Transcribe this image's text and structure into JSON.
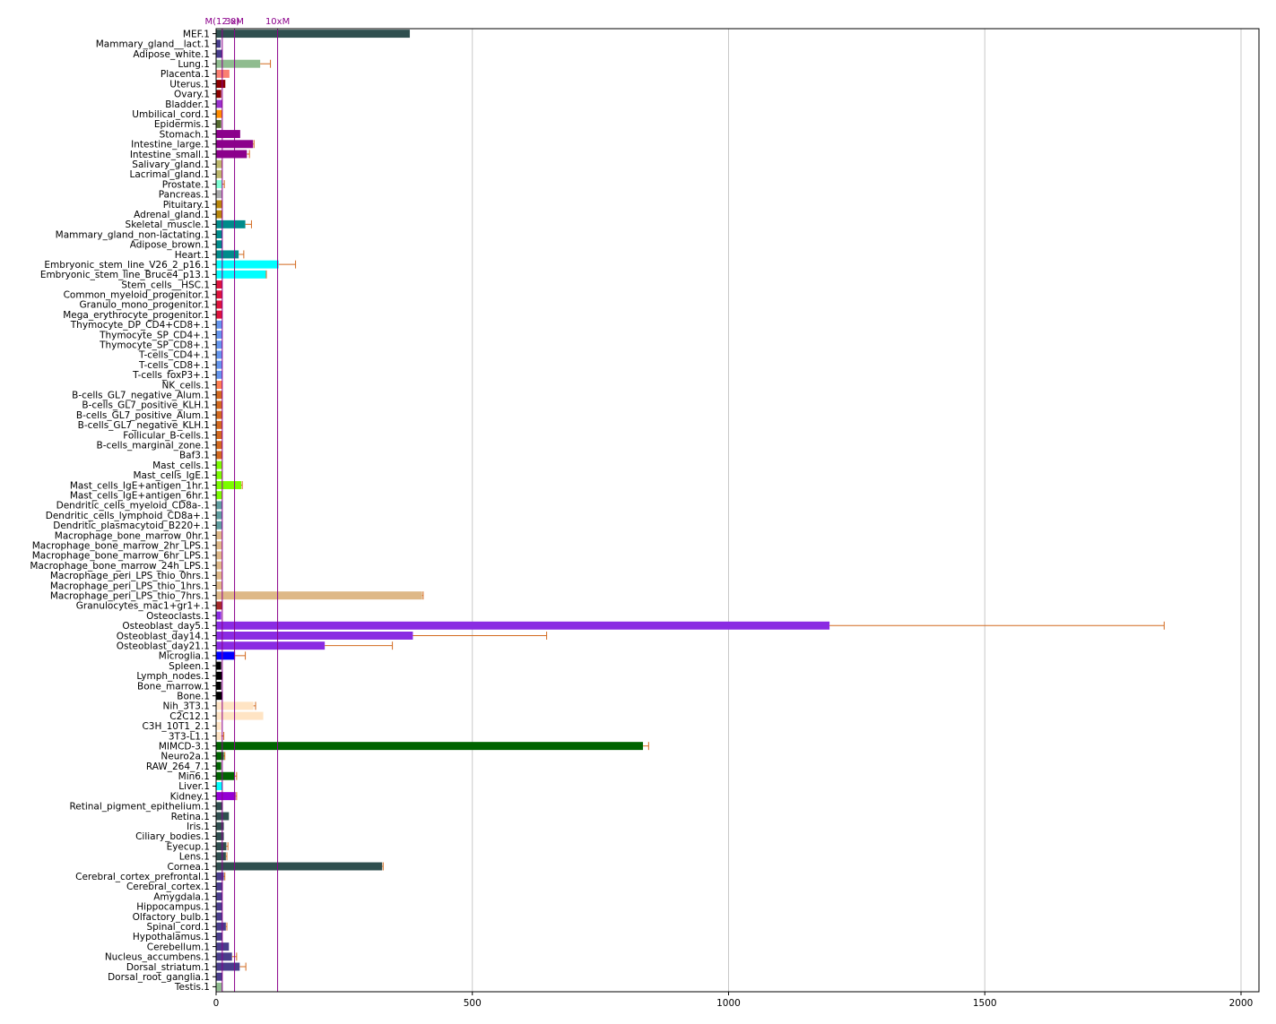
{
  "chart_data": {
    "type": "bar",
    "orientation": "horizontal",
    "title": "",
    "xlabel": "",
    "ylabel": "",
    "xlim": [
      0,
      2035
    ],
    "xticks": [
      0,
      500,
      1000,
      1500,
      2000
    ],
    "grid": "vertical",
    "error_bar_color": "#d2691e",
    "reference_lines": [
      {
        "label": "M(12.0)",
        "value": 12,
        "color": "#8b008b"
      },
      {
        "label": "3xM",
        "value": 36,
        "color": "#8b008b"
      },
      {
        "label": "10xM",
        "value": 120,
        "color": "#8b008b"
      }
    ],
    "categories": [
      "MEF.1",
      "Mammary_gland__lact.1",
      "Adipose_white.1",
      "Lung.1",
      "Placenta.1",
      "Uterus.1",
      "Ovary.1",
      "Bladder.1",
      "Umbilical_cord.1",
      "Epidermis.1",
      "Stomach.1",
      "Intestine_large.1",
      "Intestine_small.1",
      "Salivary_gland.1",
      "Lacrimal_gland.1",
      "Prostate.1",
      "Pancreas.1",
      "Pituitary.1",
      "Adrenal_gland.1",
      "Skeletal_muscle.1",
      "Mammary_gland_non-lactating.1",
      "Adipose_brown.1",
      "Heart.1",
      "Embryonic_stem_line_V26_2_p16.1",
      "Embryonic_stem_line_Bruce4_p13.1",
      "Stem_cells__HSC.1",
      "Common_myeloid_progenitor.1",
      "Granulo_mono_progenitor.1",
      "Mega_erythrocyte_progenitor.1",
      "Thymocyte_DP_CD4+CD8+.1",
      "Thymocyte_SP_CD4+.1",
      "Thymocyte_SP_CD8+.1",
      "T-cells_CD4+.1",
      "T-cells_CD8+.1",
      "T-cells_foxP3+.1",
      "NK_cells.1",
      "B-cells_GL7_negative_Alum.1",
      "B-cells_GL7_positive_KLH.1",
      "B-cells_GL7_positive_Alum.1",
      "B-cells_GL7_negative_KLH.1",
      "Follicular_B-cells.1",
      "B-cells_marginal_zone.1",
      "Baf3.1",
      "Mast_cells.1",
      "Mast_cells_IgE.1",
      "Mast_cells_IgE+antigen_1hr.1",
      "Mast_cells_IgE+antigen_6hr.1",
      "Dendritic_cells_myeloid_CD8a-.1",
      "Dendritic_cells_lymphoid_CD8a+.1",
      "Dendritic_plasmacytoid_B220+.1",
      "Macrophage_bone_marrow_0hr.1",
      "Macrophage_bone_marrow_2hr_LPS.1",
      "Macrophage_bone_marrow_6hr_LPS.1",
      "Macrophage_bone_marrow_24h_LPS.1",
      "Macrophage_peri_LPS_thio_0hrs.1",
      "Macrophage_peri_LPS_thio_1hrs.1",
      "Macrophage_peri_LPS_thio_7hrs.1",
      "Granulocytes_mac1+gr1+.1",
      "Osteoclasts.1",
      "Osteoblast_day5.1",
      "Osteoblast_day14.1",
      "Osteoblast_day21.1",
      "Microglia.1",
      "Spleen.1",
      "Lymph_nodes.1",
      "Bone_marrow.1",
      "Bone.1",
      "Nih_3T3.1",
      "C2C12.1",
      "C3H_10T1_2.1",
      "3T3-L1.1",
      "MIMCD-3.1",
      "Neuro2a.1",
      "RAW_264_7.1",
      "Min6.1",
      "Liver.1",
      "Kidney.1",
      "Retinal_pigment_epithelium.1",
      "Retina.1",
      "Iris.1",
      "Ciliary_bodies.1",
      "Eyecup.1",
      "Lens.1",
      "Cornea.1",
      "Cerebral_cortex_prefrontal.1",
      "Cerebral_cortex.1",
      "Amygdala.1",
      "Hippocampus.1",
      "Olfactory_bulb.1",
      "Spinal_cord.1",
      "Hypothalamus.1",
      "Cerebellum.1",
      "Nucleus_accumbens.1",
      "Dorsal_striatum.1",
      "Dorsal_root_ganglia.1",
      "Testis.1"
    ],
    "values": [
      378,
      9,
      12,
      86,
      26,
      18,
      10,
      12,
      12,
      10,
      47,
      72,
      60,
      12,
      12,
      12,
      12,
      12,
      12,
      57,
      12,
      12,
      44,
      122,
      97,
      12,
      12,
      12,
      12,
      12,
      12,
      12,
      12,
      12,
      12,
      12,
      12,
      12,
      12,
      12,
      12,
      12,
      12,
      12,
      12,
      49,
      12,
      12,
      12,
      12,
      12,
      12,
      12,
      12,
      12,
      12,
      402,
      12,
      10,
      1197,
      384,
      212,
      37,
      10,
      12,
      10,
      12,
      73,
      92,
      10,
      10,
      833,
      15,
      10,
      36,
      12,
      38,
      13,
      25,
      15,
      15,
      20,
      19,
      324,
      15,
      13,
      12,
      12,
      12,
      19,
      12,
      25,
      31,
      46,
      12,
      12
    ],
    "errors": [
      0,
      0,
      0,
      20,
      0,
      0,
      0,
      0,
      0,
      0,
      0,
      2,
      5,
      0,
      0,
      4,
      0,
      0,
      0,
      12,
      0,
      0,
      10,
      33,
      1,
      0,
      0,
      0,
      0,
      0,
      0,
      0,
      0,
      0,
      0,
      0,
      0,
      0,
      0,
      0,
      0,
      0,
      0,
      0,
      0,
      2,
      0,
      0,
      0,
      0,
      0,
      0,
      0,
      0,
      0,
      0,
      2,
      0,
      0,
      653,
      261,
      132,
      20,
      0,
      0,
      0,
      0,
      4,
      0,
      0,
      5,
      11,
      2,
      0,
      4,
      0,
      2,
      0,
      0,
      0,
      0,
      3,
      2,
      2,
      2,
      0,
      0,
      0,
      0,
      2,
      0,
      0,
      9,
      12,
      0,
      0
    ],
    "colors": [
      "#2f4f4f",
      "#483d8b",
      "#483d8b",
      "#8fbc8f",
      "#fa8072",
      "#8b0000",
      "#8b0000",
      "#9932cc",
      "#ff8c00",
      "#556b2f",
      "#8b008b",
      "#8b008b",
      "#8b008b",
      "#bdb76b",
      "#bdb76b",
      "#7fffd4",
      "#a9a9a9",
      "#b8860b",
      "#b8860b",
      "#008b8b",
      "#008b8b",
      "#008b8b",
      "#008b8b",
      "#00ffff",
      "#00ffff",
      "#dc143c",
      "#dc143c",
      "#dc143c",
      "#dc143c",
      "#6495ed",
      "#6495ed",
      "#6495ed",
      "#6495ed",
      "#6495ed",
      "#6495ed",
      "#ff7f50",
      "#d2691e",
      "#d2691e",
      "#d2691e",
      "#d2691e",
      "#d2691e",
      "#d2691e",
      "#d2691e",
      "#7cfc00",
      "#7cfc00",
      "#7cfc00",
      "#7cfc00",
      "#5f9ea0",
      "#5f9ea0",
      "#5f9ea0",
      "#deb887",
      "#deb887",
      "#deb887",
      "#deb887",
      "#deb887",
      "#deb887",
      "#deb887",
      "#a52a2a",
      "#8a2be2",
      "#8a2be2",
      "#8a2be2",
      "#8a2be2",
      "#0000ff",
      "#000000",
      "#000000",
      "#000000",
      "#000000",
      "#ffe4c4",
      "#ffe4c4",
      "#ffe4c4",
      "#ffe4c4",
      "#006400",
      "#006400",
      "#006400",
      "#006400",
      "#00ffff",
      "#9400d3",
      "#2f4f4f",
      "#2f4f4f",
      "#2f4f4f",
      "#2f4f4f",
      "#2f4f4f",
      "#2f4f4f",
      "#2f4f4f",
      "#483d8b",
      "#483d8b",
      "#483d8b",
      "#483d8b",
      "#483d8b",
      "#483d8b",
      "#483d8b",
      "#483d8b",
      "#483d8b",
      "#483d8b",
      "#483d8b",
      "#8fbc8f"
    ]
  }
}
